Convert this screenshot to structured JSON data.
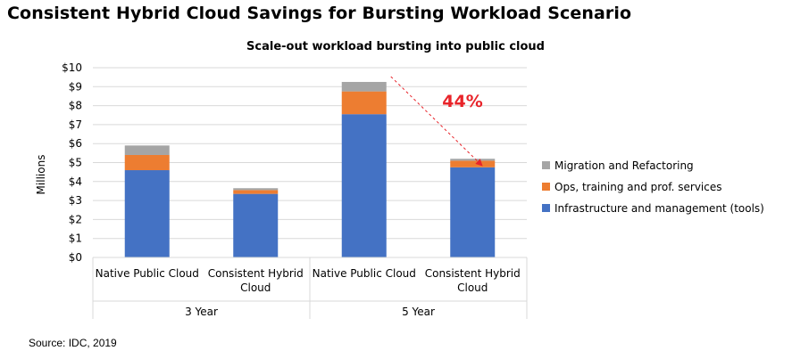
{
  "page": {
    "title": "Consistent Hybrid Cloud Savings for Bursting Workload Scenario",
    "source": "Source: IDC, 2019"
  },
  "chart_data": {
    "type": "bar",
    "stacked": true,
    "title": "Scale-out workload bursting into public cloud",
    "ylabel": "Millions",
    "ylim": [
      0,
      10
    ],
    "yticks": [
      "$0",
      "$1",
      "$2",
      "$3",
      "$4",
      "$5",
      "$6",
      "$7",
      "$8",
      "$9",
      "$10"
    ],
    "grid": true,
    "categories": [
      "Native Public Cloud",
      "Consistent Hybrid Cloud",
      "Native Public Cloud",
      "Consistent Hybrid Cloud"
    ],
    "category_label_lines": [
      [
        "Native Public Cloud"
      ],
      [
        "Consistent Hybrid",
        "Cloud"
      ],
      [
        "Native Public Cloud"
      ],
      [
        "Consistent Hybrid",
        "Cloud"
      ]
    ],
    "groups": [
      {
        "label": "3 Year",
        "categories": [
          0,
          1
        ]
      },
      {
        "label": "5 Year",
        "categories": [
          2,
          3
        ]
      }
    ],
    "series": [
      {
        "name": "Infrastructure and management (tools)",
        "color": "#4472C4",
        "values": [
          4.6,
          3.35,
          7.55,
          4.75
        ]
      },
      {
        "name": "Ops, training and prof. services",
        "color": "#ED7D31",
        "values": [
          0.8,
          0.2,
          1.2,
          0.35
        ]
      },
      {
        "name": "Migration and Refactoring",
        "color": "#A5A5A5",
        "values": [
          0.5,
          0.1,
          0.5,
          0.1
        ]
      }
    ],
    "legend_position": "right",
    "annotation": {
      "text": "44%",
      "color": "#E8242A",
      "from_category": 2,
      "to_category": 3
    }
  }
}
